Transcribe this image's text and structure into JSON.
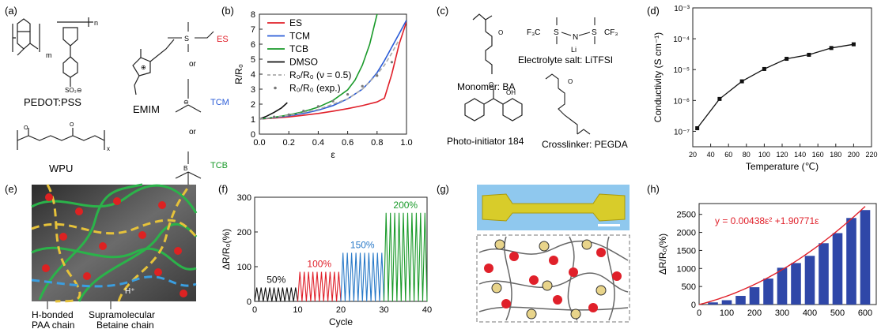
{
  "panels": {
    "a": {
      "label": "(a)",
      "pedot": "PEDOT:PSS",
      "wpu": "WPU",
      "emim": "EMIM",
      "or": "or",
      "es": "ES",
      "tcm": "TCM",
      "tcb": "TCB",
      "colors": {
        "es": "#e0202a",
        "tcm": "#2a5bd7",
        "tcb": "#1a9a2a"
      }
    },
    "c": {
      "label": "(c)",
      "monomer": "Monomer: BA",
      "electrolyte": "Electrolyte salt: LiTFSI",
      "photo": "Photo-initiator 184",
      "crosslinker": "Crosslinker: PEGDA",
      "cf3": "F₃C",
      "cf3b": "CF₃",
      "li": "Li",
      "n": "N",
      "s": "S",
      "o": "O",
      "oh": "OH"
    },
    "e": {
      "label": "(e)",
      "hbond_line1": "H-bonded",
      "hbond_line2": "PAA chain",
      "supra_line1": "Supramolecular",
      "supra_line2": "Betaine chain",
      "hplus": "H⁺"
    },
    "g": {
      "label": "(g)"
    }
  },
  "chart_data": [
    {
      "id": "b",
      "label": "(b)",
      "type": "line",
      "xlabel": "ε",
      "ylabel": "R/R₀",
      "xlim": [
        0.0,
        1.0
      ],
      "ylim": [
        0,
        8
      ],
      "xticks": [
        "0.0",
        "0.2",
        "0.4",
        "0.6",
        "0.8",
        "1.0"
      ],
      "yticks": [
        "0",
        "1",
        "2",
        "3",
        "4",
        "5",
        "6",
        "7",
        "8"
      ],
      "legend": [
        "ES",
        "TCM",
        "TCB",
        "DMSO",
        "R₀/R₀ (ν = 0.5)",
        "R₀/R₀ (exp.)"
      ],
      "series": [
        {
          "name": "ES",
          "color": "#e0202a",
          "x": [
            0,
            0.1,
            0.2,
            0.3,
            0.4,
            0.5,
            0.6,
            0.7,
            0.8,
            0.85,
            0.9,
            0.95,
            1.0
          ],
          "y": [
            1,
            1.07,
            1.15,
            1.26,
            1.38,
            1.53,
            1.7,
            1.9,
            2.15,
            2.4,
            4.0,
            6.0,
            7.5
          ]
        },
        {
          "name": "TCM",
          "color": "#2a5bd7",
          "x": [
            0,
            0.1,
            0.2,
            0.3,
            0.4,
            0.5,
            0.6,
            0.7,
            0.75,
            0.8,
            0.85,
            0.9,
            0.95,
            1.0
          ],
          "y": [
            1,
            1.1,
            1.22,
            1.38,
            1.6,
            1.9,
            2.35,
            3.0,
            3.5,
            4.1,
            4.9,
            5.8,
            6.7,
            7.6
          ]
        },
        {
          "name": "TCB",
          "color": "#1a9a2a",
          "x": [
            0,
            0.1,
            0.2,
            0.3,
            0.4,
            0.5,
            0.6,
            0.65,
            0.7,
            0.75,
            0.8
          ],
          "y": [
            1,
            1.12,
            1.28,
            1.5,
            1.8,
            2.25,
            2.95,
            3.6,
            4.6,
            6.0,
            8.0
          ]
        },
        {
          "name": "DMSO",
          "color": "#111111",
          "x": [
            0,
            0.05,
            0.1,
            0.15,
            0.19
          ],
          "y": [
            1,
            1.2,
            1.45,
            1.75,
            2.1
          ]
        },
        {
          "name": "R₀/R₀ (ν = 0.5)",
          "color": "#aaaaaa",
          "dash": true,
          "x": [
            0,
            0.2,
            0.4,
            0.6,
            0.7,
            0.8,
            0.85,
            0.9,
            0.95
          ],
          "y": [
            1,
            1.25,
            1.65,
            2.35,
            3.0,
            4.0,
            4.6,
            5.4,
            6.3
          ]
        },
        {
          "name": "R₀/R₀ (exp.)",
          "color": "#777777",
          "markers": true,
          "x": [
            0.1,
            0.2,
            0.3,
            0.4,
            0.5,
            0.6,
            0.7,
            0.8,
            0.9
          ],
          "y": [
            1.15,
            1.3,
            1.55,
            1.85,
            2.2,
            2.65,
            3.2,
            3.9,
            4.8
          ]
        }
      ]
    },
    {
      "id": "d",
      "label": "(d)",
      "type": "line",
      "xlabel": "Temperature (℃)",
      "ylabel": "Conductivity (S cm⁻¹)",
      "xlim": [
        20,
        220
      ],
      "ylim_log10": [
        -7.5,
        -3
      ],
      "xticks": [
        "20",
        "40",
        "60",
        "80",
        "100",
        "120",
        "140",
        "160",
        "180",
        "200",
        "220"
      ],
      "yticks": [
        "10⁻³",
        "10⁻⁴",
        "10⁻⁵",
        "10⁻⁶",
        "10⁻⁷"
      ],
      "series": [
        {
          "name": "",
          "color": "#111111",
          "x": [
            25,
            50,
            75,
            100,
            125,
            150,
            175,
            200
          ],
          "y_log10": [
            -6.9,
            -5.95,
            -5.38,
            -4.98,
            -4.65,
            -4.52,
            -4.3,
            -4.18
          ]
        }
      ]
    },
    {
      "id": "f",
      "label": "(f)",
      "type": "line",
      "xlabel": "Cycle",
      "ylabel": "ΔR/R₀(%)",
      "xlim": [
        0,
        40
      ],
      "ylim": [
        0,
        300
      ],
      "xticks": [
        "0",
        "10",
        "20",
        "30",
        "40"
      ],
      "yticks": [
        "0",
        "100",
        "200",
        "300"
      ],
      "segments": [
        {
          "label": "50%",
          "color": "#111111",
          "start": 0,
          "end": 10,
          "peak": 40,
          "cycles": 10
        },
        {
          "label": "100%",
          "color": "#e0202a",
          "start": 10,
          "end": 20,
          "peak": 85,
          "cycles": 10
        },
        {
          "label": "150%",
          "color": "#2a7ac8",
          "start": 20,
          "end": 30,
          "peak": 140,
          "cycles": 10
        },
        {
          "label": "200%",
          "color": "#1a9a2a",
          "start": 30,
          "end": 40,
          "peak": 255,
          "cycles": 10
        }
      ]
    },
    {
      "id": "h",
      "label": "(h)",
      "type": "bar",
      "xlabel": "",
      "ylabel": "ΔR/R₀(%)",
      "xlim": [
        0,
        640
      ],
      "ylim": [
        0,
        2800
      ],
      "xticks": [
        "0",
        "100",
        "200",
        "300",
        "400",
        "500",
        "600"
      ],
      "yticks": [
        "0",
        "500",
        "1000",
        "1500",
        "2000",
        "2500"
      ],
      "equation": "y = 0.00438ε² +1.90771ε",
      "bar_color": "#2f47a8",
      "fit_color": "#e0202a",
      "x": [
        50,
        100,
        150,
        200,
        250,
        300,
        350,
        400,
        450,
        500,
        550,
        600
      ],
      "values": [
        60,
        120,
        240,
        480,
        720,
        1020,
        1150,
        1350,
        1700,
        1980,
        2400,
        2620
      ]
    }
  ]
}
